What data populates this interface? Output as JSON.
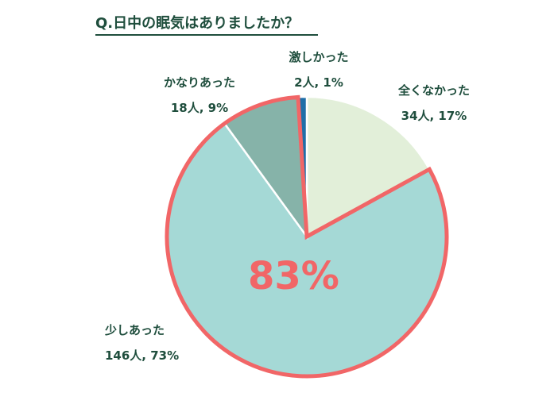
{
  "title": "Q.日中の眠気はありましたか？",
  "highlight": {
    "label": "83%",
    "color": "#f16667"
  },
  "chart_data": {
    "type": "pie",
    "title": "Q.日中の眠気はありましたか？",
    "start_angle_deg": 0,
    "direction": "clockwise",
    "slices": [
      {
        "name": "全くなかった",
        "count_label": "34人, 17%",
        "count": 34,
        "percent": 17,
        "color": "#e2efd9"
      },
      {
        "name": "少しあった",
        "count_label": "146人, 73%",
        "count": 146,
        "percent": 73,
        "color": "#a5d9d6"
      },
      {
        "name": "かなりあった",
        "count_label": "18人, 9%",
        "count": 18,
        "percent": 9,
        "color": "#86b3a9"
      },
      {
        "name": "激しかった",
        "count_label": "2人, 1%",
        "count": 2,
        "percent": 1,
        "color": "#1f6ea8"
      }
    ],
    "highlighted_slices": [
      "少しあった",
      "かなりあった"
    ],
    "highlight_color": "#f16667"
  }
}
